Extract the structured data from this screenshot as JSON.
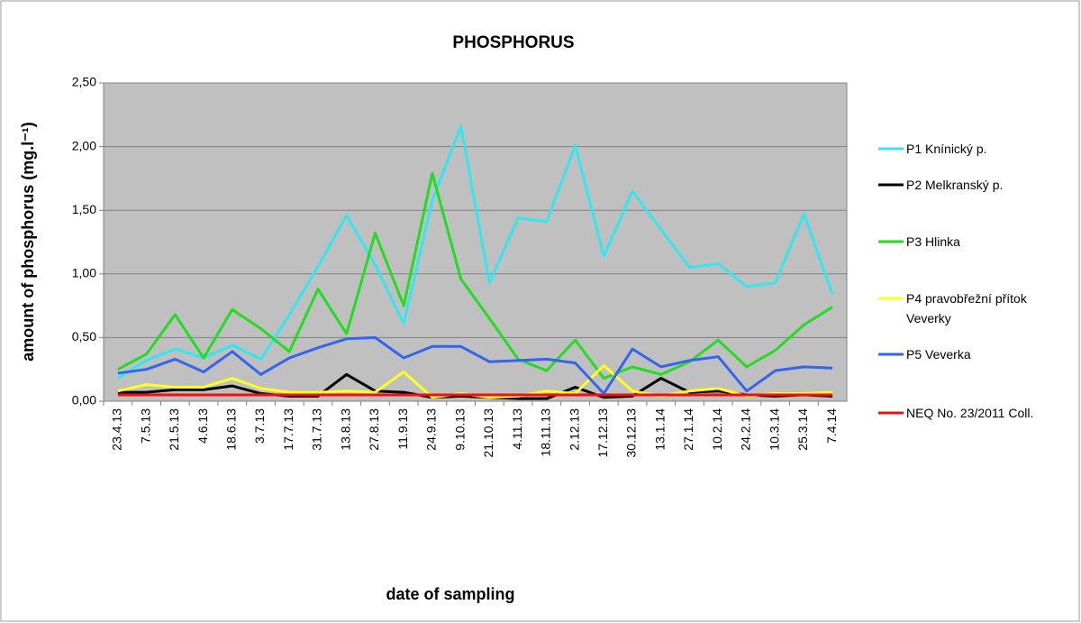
{
  "chart_data": {
    "type": "line",
    "title": "PHOSPHORUS",
    "xlabel": "date of sampling",
    "ylabel": "amount of phosphorus (mg.l⁻¹)",
    "categories": [
      "23.4.13",
      "7.5.13",
      "21.5.13",
      "4.6.13",
      "18.6.13",
      "3.7.13",
      "17.7.13",
      "31.7.13",
      "13.8.13",
      "27.8.13",
      "11.9.13",
      "24.9.13",
      "9.10.13",
      "21.10.13",
      "4.11.13",
      "18.11.13",
      "2.12.13",
      "17.12.13",
      "30.12.13",
      "13.1.14",
      "27.1.14",
      "10.2.14",
      "24.2.14",
      "10.3.14",
      "25.3.14",
      "7.4.14"
    ],
    "series": [
      {
        "name": "P1 Knínický p.",
        "color": "#33e6f0",
        "values": [
          0.18,
          0.32,
          0.41,
          0.34,
          0.44,
          0.33,
          0.68,
          1.06,
          1.46,
          1.07,
          0.61,
          1.58,
          2.16,
          0.93,
          1.44,
          1.41,
          2.01,
          1.14,
          1.65,
          1.35,
          1.05,
          1.08,
          0.9,
          0.93,
          1.47,
          0.84
        ]
      },
      {
        "name": "P2 Melkranský p.",
        "color": "#000000",
        "values": [
          0.07,
          0.07,
          0.09,
          0.09,
          0.12,
          0.06,
          0.04,
          0.04,
          0.21,
          0.08,
          0.07,
          0.03,
          0.04,
          0.03,
          0.02,
          0.02,
          0.11,
          0.03,
          0.04,
          0.18,
          0.07,
          0.08,
          0.05,
          0.04,
          0.05,
          0.04
        ]
      },
      {
        "name": "P3 Hlinka",
        "color": "#22dd22",
        "values": [
          0.25,
          0.37,
          0.68,
          0.34,
          0.72,
          0.57,
          0.39,
          0.88,
          0.53,
          1.32,
          0.75,
          1.79,
          0.96,
          0.65,
          0.33,
          0.24,
          0.48,
          0.18,
          0.27,
          0.21,
          0.31,
          0.48,
          0.27,
          0.4,
          0.6,
          0.74
        ]
      },
      {
        "name": "P4 pravobřežní přítok Veverky",
        "color": "#ffff22",
        "values": [
          0.08,
          0.13,
          0.11,
          0.11,
          0.18,
          0.1,
          0.07,
          0.07,
          0.08,
          0.07,
          0.23,
          0.03,
          0.06,
          0.03,
          0.04,
          0.08,
          0.06,
          0.28,
          0.08,
          0.04,
          0.08,
          0.1,
          0.04,
          0.06,
          0.06,
          0.07
        ]
      },
      {
        "name": "P5 Veverka",
        "color": "#3366ee",
        "values": [
          0.22,
          0.25,
          0.33,
          0.23,
          0.39,
          0.21,
          0.34,
          0.42,
          0.49,
          0.5,
          0.34,
          0.43,
          0.43,
          0.31,
          0.32,
          0.33,
          0.3,
          0.06,
          0.41,
          0.27,
          0.32,
          0.35,
          0.08,
          0.24,
          0.27,
          0.26
        ]
      },
      {
        "name": "NEQ No. 23/2011 Coll.",
        "color": "#ee1111",
        "values": [
          0.05,
          0.05,
          0.05,
          0.05,
          0.05,
          0.05,
          0.05,
          0.05,
          0.05,
          0.05,
          0.05,
          0.05,
          0.05,
          0.05,
          0.05,
          0.05,
          0.05,
          0.05,
          0.05,
          0.05,
          0.05,
          0.05,
          0.05,
          0.05,
          0.05,
          0.05
        ]
      }
    ],
    "ylim": [
      0,
      2.5
    ],
    "yticks": [
      {
        "value": 0,
        "label": "0,00"
      },
      {
        "value": 0.5,
        "label": "0,50"
      },
      {
        "value": 1,
        "label": "1,00"
      },
      {
        "value": 1.5,
        "label": "1,50"
      },
      {
        "value": 2,
        "label": "2,00"
      },
      {
        "value": 2.5,
        "label": "2,50"
      }
    ],
    "grid": true,
    "legend": "right"
  }
}
